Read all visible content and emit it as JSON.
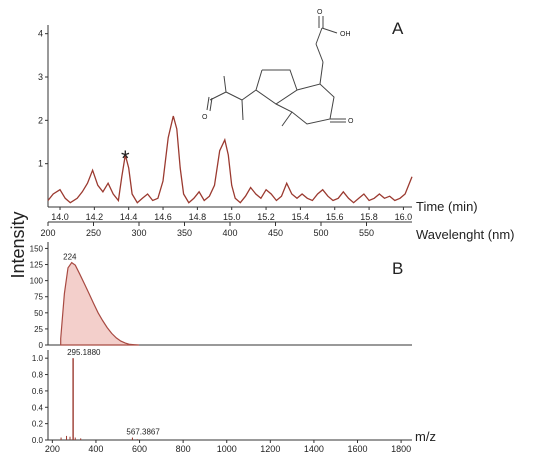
{
  "figure": {
    "y_axis_title": "Intensity",
    "panel_a_letter": "A",
    "panel_b_letter": "B"
  },
  "molecule": {
    "atom_oh": "OH",
    "atom_o_acid": "O",
    "atom_o_ketone_left": "O",
    "atom_o_ketone_right": "O",
    "peak_marker": "*"
  },
  "chart_data": [
    {
      "type": "line",
      "panel": "A",
      "title": "",
      "xlabel": "Time (min)",
      "ylabel": "Intensity",
      "xlim": [
        13.93,
        16.05
      ],
      "ylim": [
        0,
        4.2
      ],
      "xticks": [
        "14.0",
        "14.2",
        "14.4",
        "14.6",
        "14.8",
        "15.0",
        "15.2",
        "15.4",
        "15.6",
        "15.8",
        "16.0"
      ],
      "yticks": [
        "1",
        "2",
        "3",
        "4"
      ],
      "annotations": [
        {
          "text": "*",
          "x": 14.38,
          "y": 1.25
        }
      ],
      "series": [
        {
          "x": [
            13.93,
            13.96,
            14.0,
            14.03,
            14.06,
            14.1,
            14.13,
            14.16,
            14.19,
            14.22,
            14.25,
            14.28,
            14.31,
            14.34,
            14.36,
            14.38,
            14.4,
            14.42,
            14.45,
            14.48,
            14.51,
            14.54,
            14.57,
            14.6,
            14.63,
            14.66,
            14.68,
            14.7,
            14.72,
            14.75,
            14.78,
            14.81,
            14.84,
            14.87,
            14.9,
            14.93,
            14.96,
            14.98,
            15.0,
            15.02,
            15.05,
            15.08,
            15.11,
            15.14,
            15.17,
            15.2,
            15.23,
            15.26,
            15.29,
            15.32,
            15.35,
            15.38,
            15.41,
            15.44,
            15.47,
            15.5,
            15.53,
            15.56,
            15.59,
            15.62,
            15.65,
            15.68,
            15.71,
            15.74,
            15.77,
            15.8,
            15.83,
            15.86,
            15.89,
            15.92,
            15.95,
            15.98,
            16.01,
            16.03,
            16.05
          ],
          "y": [
            0.15,
            0.3,
            0.4,
            0.2,
            0.1,
            0.2,
            0.35,
            0.55,
            0.85,
            0.5,
            0.35,
            0.55,
            0.3,
            0.15,
            0.7,
            1.2,
            0.9,
            0.3,
            0.1,
            0.2,
            0.3,
            0.15,
            0.2,
            0.6,
            1.6,
            2.1,
            1.8,
            0.9,
            0.3,
            0.1,
            0.2,
            0.35,
            0.15,
            0.25,
            0.5,
            1.3,
            1.55,
            1.2,
            0.5,
            0.2,
            0.1,
            0.25,
            0.45,
            0.3,
            0.2,
            0.4,
            0.3,
            0.15,
            0.25,
            0.55,
            0.3,
            0.2,
            0.3,
            0.2,
            0.15,
            0.3,
            0.4,
            0.25,
            0.15,
            0.2,
            0.35,
            0.2,
            0.1,
            0.2,
            0.3,
            0.15,
            0.2,
            0.3,
            0.2,
            0.25,
            0.15,
            0.2,
            0.3,
            0.5,
            0.7
          ]
        }
      ]
    },
    {
      "type": "area",
      "panel": "B-UV",
      "title": "",
      "xlabel": "Wavelenght (nm)",
      "ylabel": "",
      "xlim": [
        200,
        600
      ],
      "ylim": [
        0,
        160
      ],
      "xticks": [
        "200",
        "250",
        "300",
        "350",
        "400",
        "450",
        "500",
        "550"
      ],
      "yticks": [
        "0",
        "25",
        "50",
        "75",
        "100",
        "125",
        "150"
      ],
      "annotations": [
        {
          "text": "224",
          "x": 224,
          "y": 130
        }
      ],
      "series": [
        {
          "x": [
            214,
            218,
            222,
            226,
            230,
            235,
            240,
            245,
            250,
            255,
            260,
            265,
            270,
            275,
            280,
            285,
            290,
            295,
            300
          ],
          "y": [
            10,
            80,
            120,
            128,
            124,
            110,
            95,
            80,
            65,
            50,
            38,
            27,
            18,
            11,
            6,
            3,
            1,
            0.5,
            0
          ]
        }
      ]
    },
    {
      "type": "bar",
      "panel": "B-MS",
      "title": "",
      "xlabel": "m/z",
      "ylabel": "",
      "xlim": [
        180,
        1850
      ],
      "ylim": [
        0,
        1.1
      ],
      "xticks": [
        "200",
        "400",
        "600",
        "800",
        "1000",
        "1200",
        "1400",
        "1600",
        "1800"
      ],
      "yticks": [
        "0.0",
        "0.2",
        "0.4",
        "0.6",
        "0.8",
        "1.0"
      ],
      "annotations": [
        {
          "text": "295.1880",
          "x": 295.188,
          "y": 1.0
        },
        {
          "text": "567.3867",
          "x": 567.3867,
          "y": 0.03
        }
      ],
      "series": [
        {
          "x": [
            240,
            265,
            281,
            295.188,
            305,
            330,
            567.3867,
            590
          ],
          "y": [
            0.03,
            0.05,
            0.04,
            1.0,
            0.03,
            0.02,
            0.03,
            0.01
          ]
        }
      ]
    }
  ]
}
